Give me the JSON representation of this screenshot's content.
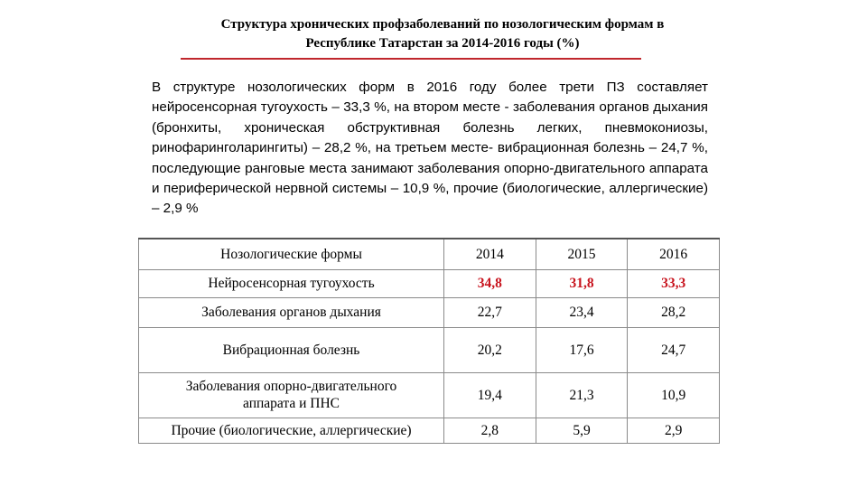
{
  "title": {
    "line1": "Структура хронических профзаболеваний по нозологическим формам в",
    "line2": "Республике Татарстан за 2014-2016 годы (%)"
  },
  "accent_color": "#c0272d",
  "highlight_color": "#c8141e",
  "paragraph": "В структуре нозологических форм в 2016 году более трети ПЗ составляет нейросенсорная тугоухость – 33,3 %, на втором месте - заболевания органов дыхания (бронхиты, хроническая обструктивная болезнь легких, пневмокониозы, ринофаринголарингиты) – 28,2 %, на третьем месте- вибрационная болезнь – 24,7 %, последующие ранговые места занимают заболевания опорно-двигательного аппарата и периферической нервной системы – 10,9 %, прочие (биологические, аллергические) – 2,9 %",
  "table": {
    "headers": [
      "Нозологические формы",
      "2014",
      "2015",
      "2016"
    ],
    "rows": [
      {
        "name": "Нейросенсорная тугоухость",
        "values": [
          "34,8",
          "31,8",
          "33,3"
        ],
        "highlight": true
      },
      {
        "name": "Заболевания органов дыхания",
        "values": [
          "22,7",
          "23,4",
          "28,2"
        ]
      },
      {
        "name": "Вибрационная болезнь",
        "values": [
          "20,2",
          "17,6",
          "24,7"
        ]
      },
      {
        "name_line1": "Заболевания опорно-двигательного",
        "name_line2": "аппарата и ПНС",
        "values": [
          "19,4",
          "21,3",
          "10,9"
        ]
      },
      {
        "name": "Прочие (биологические, аллергические)",
        "values": [
          "2,8",
          "5,9",
          "2,9"
        ]
      }
    ]
  }
}
